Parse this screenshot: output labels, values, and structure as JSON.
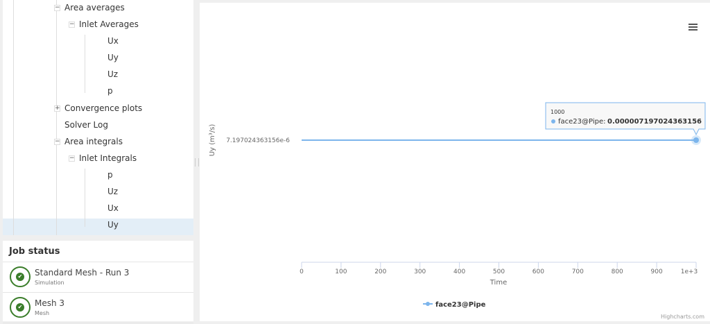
{
  "tree": {
    "items": [
      {
        "label": "Area averages",
        "toggle": "−"
      },
      {
        "label": "Inlet Averages",
        "toggle": "−"
      },
      {
        "label": "Ux"
      },
      {
        "label": "Uy"
      },
      {
        "label": "Uz"
      },
      {
        "label": "p"
      },
      {
        "label": "Convergence plots",
        "toggle": "+"
      },
      {
        "label": "Solver Log"
      },
      {
        "label": "Area integrals",
        "toggle": "−"
      },
      {
        "label": "Inlet Integrals",
        "toggle": "−"
      },
      {
        "label": "p"
      },
      {
        "label": "Uz"
      },
      {
        "label": "Ux"
      },
      {
        "label": "Uy",
        "selected": true
      }
    ]
  },
  "jobs": {
    "title": "Job status",
    "items": [
      {
        "name": "Standard Mesh - Run 3",
        "type": "Simulation",
        "status": "complete"
      },
      {
        "name": "Mesh 3",
        "type": "Mesh",
        "status": "complete"
      }
    ]
  },
  "chart_data": {
    "type": "line",
    "xlabel": "Time",
    "ylabel": "Uy (m³/s)",
    "xlim": [
      0,
      1000
    ],
    "xticks": [
      "0",
      "100",
      "200",
      "300",
      "400",
      "500",
      "600",
      "700",
      "800",
      "900",
      "1e+3"
    ],
    "yticks": [
      "7.197024363156e-6"
    ],
    "series": [
      {
        "name": "face23@Pipe",
        "color": "#7cb5ec",
        "x": [
          0,
          1000
        ],
        "y": [
          7.197024363156e-06,
          7.197024363156e-06
        ]
      }
    ],
    "tooltip": {
      "x": "1000",
      "series": "face23@Pipe:",
      "value": "0.000007197024363156"
    },
    "legend": "bottom-center",
    "credits": "Highcharts.com"
  }
}
